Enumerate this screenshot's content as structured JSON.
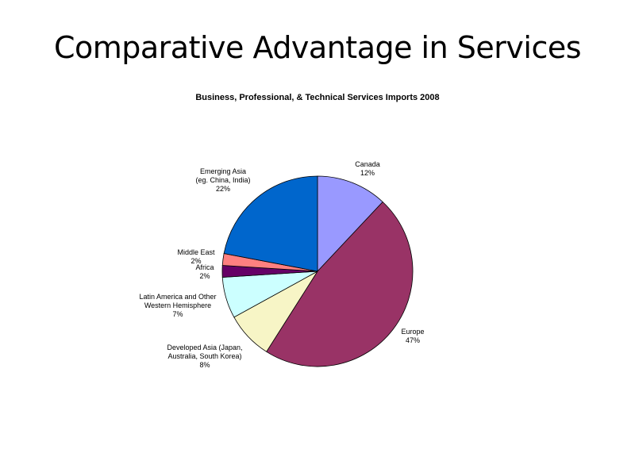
{
  "slide": {
    "title": "Comparative Advantage in Services"
  },
  "chart_data": {
    "type": "pie",
    "title": "Business, Professional, & Technical Services Imports 2008",
    "start_angle": "12 o'clock",
    "direction": "clockwise",
    "slices": [
      {
        "name": "Canada",
        "value": 12,
        "value_label": "12%",
        "color": "#9999ff"
      },
      {
        "name": "Europe",
        "value": 47,
        "value_label": "47%",
        "color": "#993366"
      },
      {
        "name": "Developed Asia (Japan, Australia, South Korea)",
        "value": 8,
        "value_label": "8%",
        "color": "#f7f5c6"
      },
      {
        "name": "Latin America and Other Western Hemisphere",
        "value": 7,
        "value_label": "7%",
        "color": "#ccffff"
      },
      {
        "name": "Africa",
        "value": 2,
        "value_label": "2%",
        "color": "#660066"
      },
      {
        "name": "Middle East",
        "value": 2,
        "value_label": "2%",
        "color": "#ff8080"
      },
      {
        "name": "Emerging Asia (eg. China, India)",
        "value": 22,
        "value_label": "22%",
        "color": "#0066cc"
      }
    ]
  }
}
